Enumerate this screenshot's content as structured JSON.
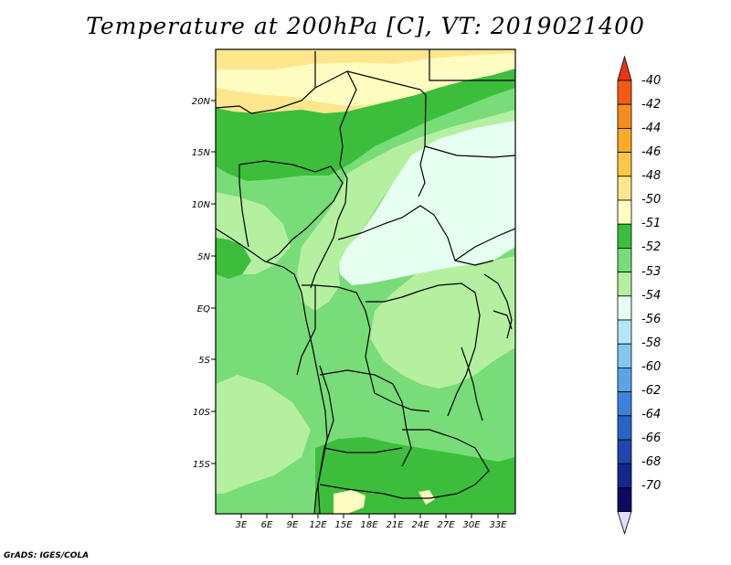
{
  "title": "Temperature at 200hPa [C], VT: 2019021400",
  "credit": "GrADS: IGES/COLA",
  "map": {
    "lat_ticks": [
      "20N",
      "15N",
      "10N",
      "5N",
      "EQ",
      "5S",
      "10S",
      "15S"
    ],
    "lon_ticks": [
      "3E",
      "6E",
      "9E",
      "12E",
      "15E",
      "18E",
      "21E",
      "24E",
      "27E",
      "30E",
      "33E"
    ]
  },
  "colorbar": {
    "labels": [
      "-40",
      "-42",
      "-44",
      "-46",
      "-48",
      "-50",
      "-51",
      "-52",
      "-53",
      "-54",
      "-56",
      "-58",
      "-60",
      "-62",
      "-64",
      "-66",
      "-68",
      "-70"
    ],
    "colors": [
      "#f03214",
      "#f55a14",
      "#f78c1e",
      "#f9aa28",
      "#fcc845",
      "#fde68c",
      "#fefcc0",
      "#3cbe3c",
      "#78dc78",
      "#b4f0a0",
      "#e6fff0",
      "#b4e6fa",
      "#82c8f0",
      "#5aa5e6",
      "#3c82dc",
      "#2864c8",
      "#1e46af",
      "#14288c",
      "#0a0a64",
      "#e6dcfa"
    ]
  }
}
